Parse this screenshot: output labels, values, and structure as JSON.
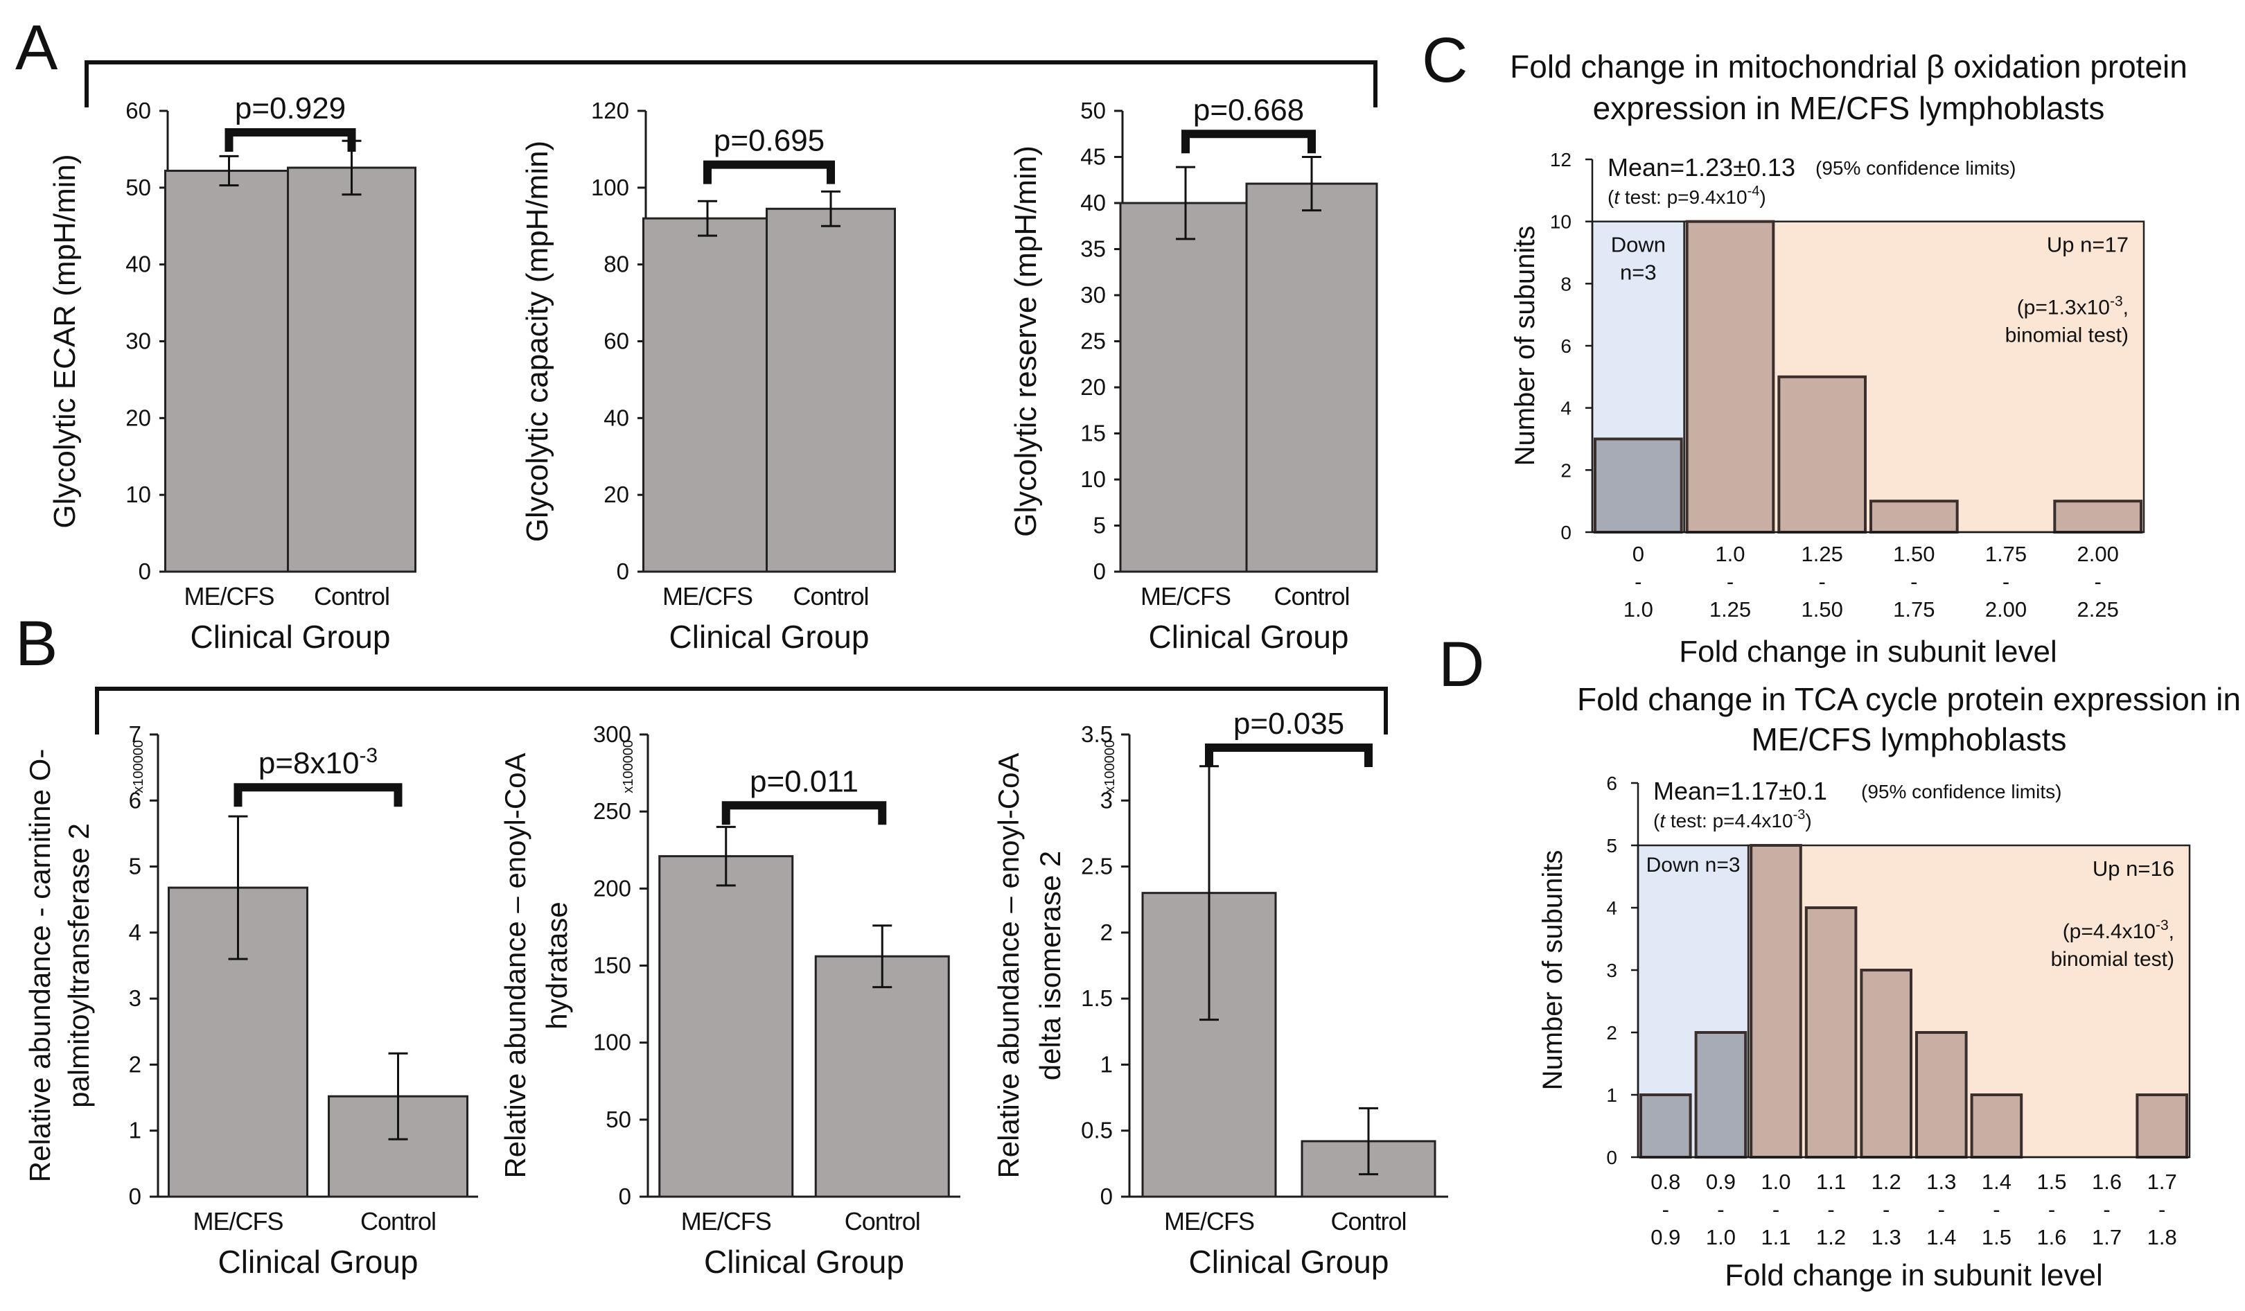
{
  "figure": {
    "panel_letters": [
      "A",
      "B",
      "C",
      "D"
    ]
  },
  "colors": {
    "bar_grey": "#a8a5a4",
    "bar_brown": "#c9aea4",
    "bar_slate": "#a7abb5",
    "region_blue": "#e1e8f6",
    "region_peach": "#fbe6d6",
    "axis": "#1a1a1a"
  },
  "chart_data": [
    {
      "id": "A1",
      "type": "bar",
      "categories": [
        "ME/CFS",
        "Control"
      ],
      "values": [
        52.2,
        52.6
      ],
      "errors": [
        1.9,
        3.5
      ],
      "ylabel": "Glycolytic ECAR (mpH/min)",
      "xlabel": "Clinical Group",
      "ylim": [
        0,
        60
      ],
      "yticks": [
        "0",
        "10",
        "20",
        "30",
        "40",
        "50",
        "60"
      ],
      "pvalue": "p=0.929",
      "bracket_y": 57.2
    },
    {
      "id": "A2",
      "type": "bar",
      "categories": [
        "ME/CFS",
        "Control"
      ],
      "values": [
        92.0,
        94.5
      ],
      "errors": [
        4.5,
        4.5
      ],
      "ylabel": "Glycolytic capacity (mpH/min)",
      "xlabel": "Clinical Group",
      "ylim": [
        0,
        120
      ],
      "yticks": [
        "0",
        "20",
        "40",
        "60",
        "80",
        "100",
        "120"
      ],
      "pvalue": "p=0.695",
      "bracket_y": 106
    },
    {
      "id": "A3",
      "type": "bar",
      "categories": [
        "ME/CFS",
        "Control"
      ],
      "values": [
        40.0,
        42.1
      ],
      "errors": [
        3.9,
        2.9
      ],
      "ylabel": "Glycolytic reserve (mpH/min)",
      "xlabel": "Clinical Group",
      "ylim": [
        0,
        50
      ],
      "yticks": [
        "0",
        "5",
        "10",
        "15",
        "20",
        "25",
        "30",
        "35",
        "40",
        "45",
        "50"
      ],
      "pvalue": "p=0.668",
      "bracket_y": 47.5
    },
    {
      "id": "B1",
      "type": "bar",
      "categories": [
        "ME/CFS",
        "Control"
      ],
      "values": [
        4.68,
        1.52
      ],
      "errors": [
        1.08,
        0.65
      ],
      "ylabel_lines": [
        "Relative abundance - carnitine O-",
        "palmitoyltransferase 2"
      ],
      "xlabel": "Clinical Group",
      "multiplier": "x100000",
      "ylim": [
        0,
        7
      ],
      "yticks": [
        "0",
        "1",
        "2",
        "3",
        "4",
        "5",
        "6",
        "7"
      ],
      "pvalue": "p=8x10",
      "pvalue_sup": "-3",
      "bracket_y": 6.2
    },
    {
      "id": "B2",
      "type": "bar",
      "categories": [
        "ME/CFS",
        "Control"
      ],
      "values": [
        221,
        156
      ],
      "errors": [
        19,
        20
      ],
      "ylabel_lines": [
        "Relative abundance – enoyl-CoA",
        "hydratase"
      ],
      "xlabel": "Clinical Group",
      "multiplier": "x100000",
      "ylim": [
        0,
        300
      ],
      "yticks": [
        "0",
        "50",
        "100",
        "150",
        "200",
        "250",
        "300"
      ],
      "pvalue": "p=0.011",
      "bracket_y": 254
    },
    {
      "id": "B3",
      "type": "bar",
      "categories": [
        "ME/CFS",
        "Control"
      ],
      "values": [
        2.3,
        0.42
      ],
      "errors": [
        0.96,
        0.25
      ],
      "ylabel_lines": [
        "Relative abundance – enoyl-CoA",
        "delta isomerase 2"
      ],
      "xlabel": "Clinical Group",
      "multiplier": "x100000",
      "ylim": [
        0,
        3.5
      ],
      "yticks": [
        "0",
        "0.5",
        "1",
        "1.5",
        "2",
        "2.5",
        "3",
        "3.5"
      ],
      "pvalue": "p=0.035",
      "bracket_y": 3.4
    },
    {
      "id": "C",
      "type": "bar",
      "title_lines": [
        "Fold change in mitochondrial β oxidation protein",
        "expression in ME/CFS lymphoblasts"
      ],
      "bin_top": [
        "0",
        "1.0",
        "1.25",
        "1.50",
        "1.75",
        "2.00"
      ],
      "bin_bottom": [
        "1.0",
        "1.25",
        "1.50",
        "1.75",
        "2.00",
        "2.25"
      ],
      "bin_dash": "-",
      "values": [
        3,
        10,
        5,
        1,
        0,
        1
      ],
      "down_bins": 1,
      "ylim": [
        0,
        12
      ],
      "yticks": [
        "0",
        "2",
        "4",
        "6",
        "8",
        "10",
        "12"
      ],
      "region_top": 10,
      "ylabel": "Number of subunits",
      "xlabel": "Fold change in subunit level",
      "mean_text": "Mean=1.23±0.13",
      "ci_text": "(95% confidence limits)",
      "ttest_pre": "(",
      "ttest_t": "t",
      "ttest_main": " test: p=9.4x10",
      "ttest_sup": "-4",
      "ttest_close": ")",
      "down_lines": [
        "Down",
        "n=3"
      ],
      "up_text": "Up n=17",
      "binom_line1_pre": "(p=1.3x10",
      "binom_line1_sup": "-3",
      "binom_line1_post": ",",
      "binom_line2": "binomial test)"
    },
    {
      "id": "D",
      "type": "bar",
      "title_lines": [
        "Fold change in TCA cycle protein expression in",
        "ME/CFS lymphoblasts"
      ],
      "bin_top": [
        "0.8",
        "0.9",
        "1.0",
        "1.1",
        "1.2",
        "1.3",
        "1.4",
        "1.5",
        "1.6",
        "1.7"
      ],
      "bin_bottom": [
        "0.9",
        "1.0",
        "1.1",
        "1.2",
        "1.3",
        "1.4",
        "1.5",
        "1.6",
        "1.7",
        "1.8"
      ],
      "bin_dash": "-",
      "values": [
        1,
        2,
        5,
        4,
        3,
        2,
        1,
        0,
        0,
        1
      ],
      "down_bins": 2,
      "ylim": [
        0,
        6
      ],
      "yticks": [
        "0",
        "1",
        "2",
        "3",
        "4",
        "5",
        "6"
      ],
      "region_top": 5,
      "ylabel": "Number of subunits",
      "xlabel": "Fold change in subunit level",
      "mean_text": "Mean=1.17±0.1",
      "ci_text": "(95% confidence limits)",
      "ttest_pre": "(",
      "ttest_t": "t",
      "ttest_main": " test: p=4.4x10",
      "ttest_sup": "-3",
      "ttest_close": ")",
      "down_lines": [
        "Down n=3"
      ],
      "up_text": "Up n=16",
      "binom_line1_pre": "(p=4.4x10",
      "binom_line1_sup": "-3",
      "binom_line1_post": ",",
      "binom_line2": "binomial test)"
    }
  ]
}
